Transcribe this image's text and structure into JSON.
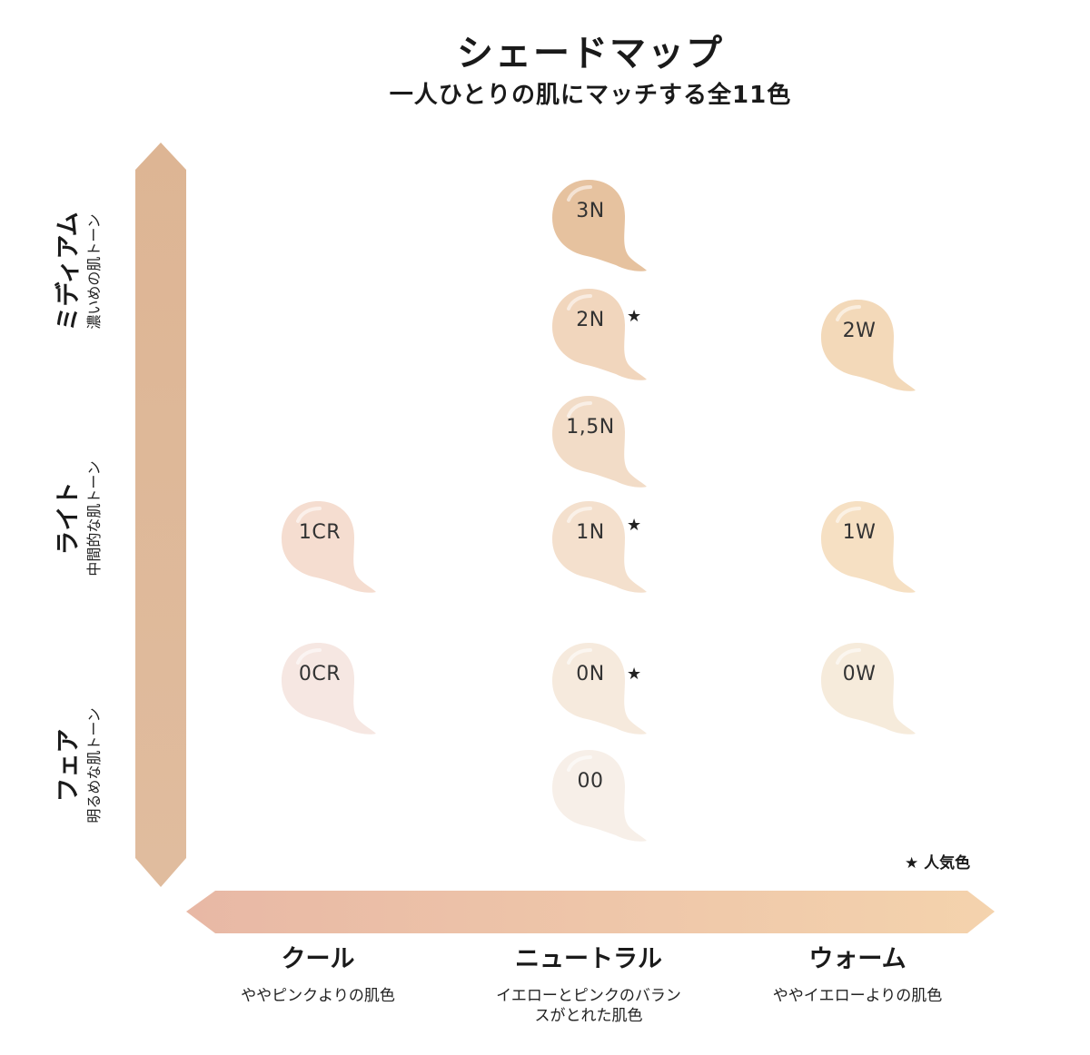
{
  "title": "シェードマップ",
  "subtitle": "一人ひとりの肌にマッチする全11色",
  "y_axis": {
    "rows": [
      {
        "main": "ミディアム",
        "sub": "濃いめの肌トーン"
      },
      {
        "main": "ライト",
        "sub": "中間的な肌トーン"
      },
      {
        "main": "フェア",
        "sub": "明るめな肌トーン"
      }
    ]
  },
  "x_axis": {
    "columns": [
      {
        "main": "クール",
        "sub": "ややピンクよりの肌色"
      },
      {
        "main": "ニュートラル",
        "sub": "イエローとピンクのバランスがとれた肌色"
      },
      {
        "main": "ウォーム",
        "sub": "ややイエローよりの肌色"
      }
    ]
  },
  "legend": {
    "star": "★",
    "label": "人気色"
  },
  "shades": [
    {
      "code": "3N",
      "color": "#e6c29f",
      "popular": false
    },
    {
      "code": "2N",
      "color": "#f1d6bd",
      "popular": true
    },
    {
      "code": "2W",
      "color": "#f3d9b9",
      "popular": false
    },
    {
      "code": "1,5N",
      "color": "#f2dcc7",
      "popular": false
    },
    {
      "code": "1CR",
      "color": "#f5ddd0",
      "popular": false
    },
    {
      "code": "1N",
      "color": "#f4e0cd",
      "popular": true
    },
    {
      "code": "1W",
      "color": "#f6e0c3",
      "popular": false
    },
    {
      "code": "0CR",
      "color": "#f6e7e2",
      "popular": false
    },
    {
      "code": "0N",
      "color": "#f6eadd",
      "popular": true
    },
    {
      "code": "0W",
      "color": "#f6ebdb",
      "popular": false
    },
    {
      "code": "00",
      "color": "#f7efe8",
      "popular": false
    }
  ],
  "colors": {
    "vertical_arrow": "#ddb795",
    "horizontal_arrow_start": "#e8b9a6",
    "horizontal_arrow_end": "#f3d2ae"
  }
}
